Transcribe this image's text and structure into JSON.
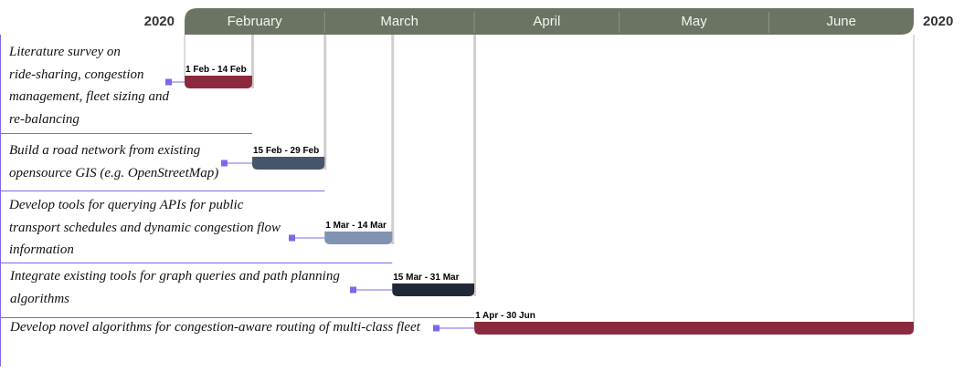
{
  "chart_data": {
    "type": "gantt",
    "year_label_left": "2020",
    "year_label_right": "2020",
    "months": [
      "February",
      "March",
      "April",
      "May",
      "June"
    ],
    "tasks": [
      {
        "name": "Literature survey on ride-sharing, congestion management, fleet sizing and re-balancing",
        "lines": [
          "Literature survey on",
          "ride-sharing, congestion",
          "management, fleet sizing and",
          "re-balancing"
        ],
        "start": "2020-02-01",
        "end": "2020-02-14",
        "range_label": "1 Feb - 14 Feb",
        "color": "#8b2a3e"
      },
      {
        "name": "Build a road network from existing opensource GIS (e.g. OpenStreetMap)",
        "lines": [
          "Build a road network from existing",
          "opensource GIS (e.g. OpenStreetMap)"
        ],
        "start": "2020-02-15",
        "end": "2020-02-29",
        "range_label": "15 Feb - 29 Feb",
        "color": "#465569"
      },
      {
        "name": "Develop tools for querying APIs for public transport schedules and dynamic congestion flow information",
        "lines": [
          "Develop tools for querying APIs for public",
          "transport schedules and dynamic congestion flow",
          "information"
        ],
        "start": "2020-03-01",
        "end": "2020-03-14",
        "range_label": "1 Mar - 14 Mar",
        "color": "#8193b2"
      },
      {
        "name": "Integrate existing tools for graph queries and path planning algorithms",
        "lines": [
          "Integrate existing tools for graph queries and path planning",
          "algorithms"
        ],
        "start": "2020-03-15",
        "end": "2020-03-31",
        "range_label": "15 Mar - 31 Mar",
        "color": "#222936"
      },
      {
        "name": "Develop novel algorithms for congestion-aware routing of multi-class fleet",
        "lines": [
          "Develop novel algorithms for congestion-aware routing of multi-class fleet"
        ],
        "start": "2020-04-01",
        "end": "2020-06-30",
        "range_label": "1 Apr - 30 Jun",
        "color": "#8b2a3e"
      }
    ],
    "colors": {
      "header": "#6b7363",
      "divider": "#7b68ee",
      "connector": "#7b68ee",
      "guide": "#cccccc"
    }
  }
}
